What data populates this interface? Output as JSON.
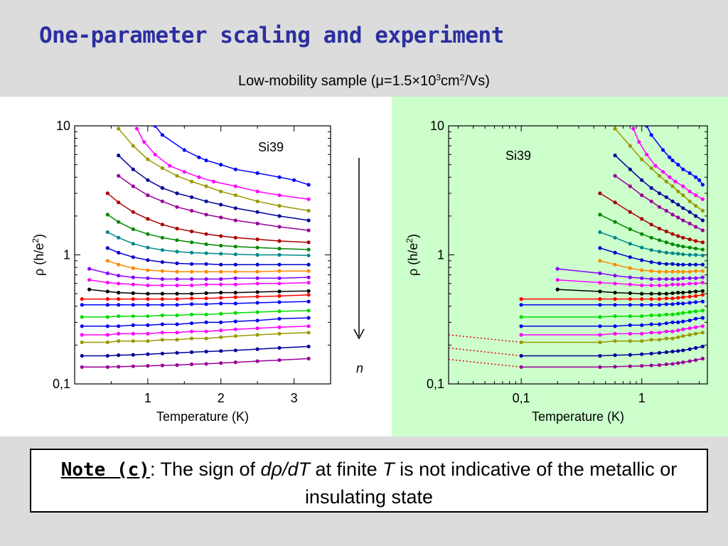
{
  "slide": {
    "title": "One-parameter scaling and experiment",
    "subtitle": {
      "prefix": "Low-mobility sample (μ=1.5",
      "times": "×",
      "ten": "10",
      "exp3": "3",
      "cm": "cm",
      "exp2": "2",
      "suffix": "/Vs)"
    }
  },
  "note": {
    "label": "Note (c)",
    "colon": ": The sign of ",
    "deriv": "dρ/dT",
    "mid": " at finite ",
    "T": "T",
    "rest": " is not indicative of the metallic or insulating state"
  },
  "arrow_label": "n",
  "colors": {
    "title": "#2b2fa0",
    "right_panel_bg": "#ccffcc",
    "extrapolation": "#e00000"
  },
  "chart_data": [
    {
      "type": "line",
      "title": "",
      "annotation": "Si39",
      "xlabel": "Temperature (K)",
      "ylabel_symbol": "ρ",
      "ylabel_unit": "(h/e",
      "ylabel_exp": "2",
      "ylabel_close": ")",
      "x_scale": "linear",
      "y_scale": "log",
      "xlim": [
        0,
        3.5
      ],
      "ylim": [
        0.1,
        10
      ],
      "x_ticks": [
        1,
        2,
        3
      ],
      "x_tick_labels": [
        "1",
        "2",
        "3"
      ],
      "y_ticks": [
        0.1,
        1,
        10
      ],
      "y_tick_labels": [
        "0,1",
        "1",
        "10"
      ],
      "grid": false,
      "x": [
        0.6,
        0.8,
        1.0,
        1.2,
        1.4,
        1.6,
        1.8,
        2.0,
        2.2,
        2.4,
        2.6,
        2.8,
        3.0,
        3.2
      ],
      "series": [
        {
          "color": "#0000ff",
          "x": [
            1.1,
            1.2,
            1.5,
            1.7,
            1.8,
            2.0,
            2.2,
            2.5,
            2.8,
            3.0,
            3.2
          ],
          "values": [
            10.0,
            8.5,
            6.5,
            5.7,
            5.4,
            5.0,
            4.6,
            4.3,
            4.0,
            3.8,
            3.5
          ]
        },
        {
          "color": "#ff00ff",
          "x": [
            0.85,
            0.95,
            1.1,
            1.3,
            1.5,
            1.7,
            1.9,
            2.2,
            2.5,
            2.8,
            3.2
          ],
          "values": [
            9.5,
            7.5,
            6.0,
            4.9,
            4.4,
            4.0,
            3.7,
            3.4,
            3.1,
            2.9,
            2.7
          ]
        },
        {
          "color": "#999900",
          "x": [
            0.6,
            0.8,
            1.0,
            1.2,
            1.4,
            1.6,
            1.8,
            2.0,
            2.2,
            2.5,
            2.8,
            3.2
          ],
          "values": [
            9.5,
            7.0,
            5.5,
            4.7,
            4.1,
            3.7,
            3.4,
            3.1,
            2.9,
            2.6,
            2.4,
            2.2
          ]
        },
        {
          "color": "#000099",
          "x": [
            0.6,
            0.8,
            1.0,
            1.2,
            1.4,
            1.6,
            1.8,
            2.0,
            2.2,
            2.5,
            2.8,
            3.2
          ],
          "values": [
            5.9,
            4.6,
            3.8,
            3.3,
            3.0,
            2.8,
            2.6,
            2.45,
            2.3,
            2.15,
            2.0,
            1.85
          ]
        },
        {
          "color": "#990099",
          "x": [
            0.6,
            0.8,
            1.0,
            1.2,
            1.4,
            1.6,
            1.8,
            2.0,
            2.2,
            2.5,
            2.8,
            3.2
          ],
          "values": [
            4.1,
            3.4,
            2.9,
            2.6,
            2.35,
            2.2,
            2.05,
            1.95,
            1.85,
            1.75,
            1.65,
            1.55
          ]
        },
        {
          "color": "#aa0000",
          "x": [
            0.45,
            0.6,
            0.8,
            1.0,
            1.2,
            1.4,
            1.6,
            1.8,
            2.0,
            2.2,
            2.5,
            2.8,
            3.2
          ],
          "values": [
            3.0,
            2.55,
            2.15,
            1.9,
            1.72,
            1.6,
            1.52,
            1.45,
            1.4,
            1.36,
            1.32,
            1.28,
            1.25
          ]
        },
        {
          "color": "#008800",
          "x": [
            0.45,
            0.6,
            0.8,
            1.0,
            1.2,
            1.4,
            1.6,
            1.8,
            2.0,
            2.2,
            2.5,
            2.8,
            3.2
          ],
          "values": [
            2.05,
            1.8,
            1.58,
            1.45,
            1.36,
            1.3,
            1.25,
            1.21,
            1.18,
            1.16,
            1.14,
            1.12,
            1.1
          ]
        },
        {
          "color": "#008888",
          "x": [
            0.45,
            0.6,
            0.8,
            1.0,
            1.2,
            1.4,
            1.6,
            1.8,
            2.0,
            2.2,
            2.5,
            2.8,
            3.2
          ],
          "values": [
            1.5,
            1.36,
            1.22,
            1.14,
            1.09,
            1.06,
            1.04,
            1.03,
            1.02,
            1.01,
            1.0,
            1.0,
            0.99
          ]
        },
        {
          "color": "#0000cc",
          "x": [
            0.45,
            0.6,
            0.8,
            1.0,
            1.2,
            1.4,
            1.6,
            1.8,
            2.0,
            2.2,
            2.5,
            2.8,
            3.2
          ],
          "values": [
            1.13,
            1.04,
            0.96,
            0.91,
            0.88,
            0.86,
            0.85,
            0.85,
            0.84,
            0.84,
            0.84,
            0.84,
            0.84
          ]
        },
        {
          "color": "#ff8800",
          "x": [
            0.45,
            0.6,
            0.8,
            1.0,
            1.2,
            1.4,
            1.6,
            1.8,
            2.0,
            2.2,
            2.5,
            2.8,
            3.2
          ],
          "values": [
            0.9,
            0.84,
            0.79,
            0.76,
            0.75,
            0.74,
            0.74,
            0.74,
            0.74,
            0.74,
            0.74,
            0.75,
            0.75
          ]
        },
        {
          "color": "#8800ff",
          "x": [
            0.2,
            0.45,
            0.6,
            0.8,
            1.0,
            1.2,
            1.4,
            1.6,
            1.8,
            2.0,
            2.2,
            2.5,
            2.8,
            3.2
          ],
          "values": [
            0.78,
            0.72,
            0.69,
            0.67,
            0.66,
            0.65,
            0.65,
            0.65,
            0.65,
            0.65,
            0.66,
            0.66,
            0.66,
            0.67
          ]
        },
        {
          "color": "#ff00ff",
          "x": [
            0.2,
            0.45,
            0.6,
            0.8,
            1.0,
            1.2,
            1.4,
            1.6,
            1.8,
            2.0,
            2.2,
            2.5,
            2.8,
            3.2
          ],
          "values": [
            0.64,
            0.61,
            0.6,
            0.59,
            0.58,
            0.58,
            0.58,
            0.58,
            0.59,
            0.59,
            0.59,
            0.6,
            0.6,
            0.61
          ]
        },
        {
          "color": "#000000",
          "x": [
            0.2,
            0.45,
            0.6,
            0.8,
            1.0,
            1.2,
            1.4,
            1.6,
            1.8,
            2.0,
            2.2,
            2.5,
            2.8,
            3.2
          ],
          "values": [
            0.54,
            0.52,
            0.51,
            0.505,
            0.5,
            0.5,
            0.5,
            0.5,
            0.505,
            0.51,
            0.51,
            0.515,
            0.52,
            0.525
          ]
        },
        {
          "color": "#ff0000",
          "x": [
            0.1,
            0.45,
            0.6,
            0.8,
            1.0,
            1.2,
            1.4,
            1.6,
            1.8,
            2.0,
            2.2,
            2.5,
            2.8,
            3.2
          ],
          "values": [
            0.455,
            0.455,
            0.455,
            0.455,
            0.455,
            0.455,
            0.455,
            0.46,
            0.46,
            0.465,
            0.47,
            0.475,
            0.48,
            0.49
          ]
        },
        {
          "color": "#0000ff",
          "x": [
            0.1,
            0.45,
            0.6,
            0.8,
            1.0,
            1.2,
            1.4,
            1.6,
            1.8,
            2.0,
            2.2,
            2.5,
            2.8,
            3.2
          ],
          "values": [
            0.41,
            0.41,
            0.41,
            0.41,
            0.41,
            0.41,
            0.41,
            0.415,
            0.415,
            0.42,
            0.42,
            0.425,
            0.43,
            0.435
          ]
        },
        {
          "color": "#00dd00",
          "x": [
            0.1,
            0.45,
            0.6,
            0.8,
            1.0,
            1.2,
            1.4,
            1.6,
            1.8,
            2.0,
            2.2,
            2.5,
            2.8,
            3.2
          ],
          "values": [
            0.33,
            0.33,
            0.335,
            0.335,
            0.335,
            0.34,
            0.34,
            0.345,
            0.345,
            0.35,
            0.355,
            0.36,
            0.365,
            0.37
          ]
        },
        {
          "color": "#0000ee",
          "x": [
            0.1,
            0.45,
            0.6,
            0.8,
            1.0,
            1.2,
            1.4,
            1.6,
            1.8,
            2.0,
            2.2,
            2.5,
            2.8,
            3.2
          ],
          "values": [
            0.28,
            0.28,
            0.28,
            0.285,
            0.285,
            0.29,
            0.29,
            0.295,
            0.3,
            0.3,
            0.305,
            0.31,
            0.32,
            0.325
          ]
        },
        {
          "color": "#ff00ff",
          "x": [
            0.1,
            0.45,
            0.6,
            0.8,
            1.0,
            1.2,
            1.4,
            1.6,
            1.8,
            2.0,
            2.2,
            2.5,
            2.8,
            3.2
          ],
          "values": [
            0.24,
            0.24,
            0.245,
            0.245,
            0.245,
            0.25,
            0.25,
            0.255,
            0.255,
            0.26,
            0.265,
            0.27,
            0.275,
            0.28
          ]
        },
        {
          "color": "#999900",
          "x": [
            0.1,
            0.45,
            0.6,
            0.8,
            1.0,
            1.2,
            1.4,
            1.6,
            1.8,
            2.0,
            2.2,
            2.5,
            2.8,
            3.2
          ],
          "values": [
            0.21,
            0.21,
            0.215,
            0.215,
            0.215,
            0.22,
            0.22,
            0.225,
            0.225,
            0.23,
            0.235,
            0.24,
            0.245,
            0.25
          ]
        },
        {
          "color": "#000099",
          "x": [
            0.1,
            0.45,
            0.6,
            0.8,
            1.0,
            1.2,
            1.4,
            1.6,
            1.8,
            2.0,
            2.2,
            2.5,
            2.8,
            3.2
          ],
          "values": [
            0.165,
            0.165,
            0.167,
            0.168,
            0.17,
            0.172,
            0.174,
            0.176,
            0.178,
            0.18,
            0.182,
            0.186,
            0.19,
            0.195
          ]
        },
        {
          "color": "#990099",
          "x": [
            0.1,
            0.45,
            0.6,
            0.8,
            1.0,
            1.2,
            1.4,
            1.6,
            1.8,
            2.0,
            2.2,
            2.5,
            2.8,
            3.2
          ],
          "values": [
            0.135,
            0.135,
            0.136,
            0.137,
            0.138,
            0.139,
            0.14,
            0.142,
            0.143,
            0.145,
            0.147,
            0.15,
            0.153,
            0.157
          ]
        }
      ]
    },
    {
      "type": "line",
      "title": "",
      "annotation": "Si39",
      "xlabel": "Temperature (K)",
      "ylabel_symbol": "ρ",
      "ylabel_unit": "(h/e",
      "ylabel_exp": "2",
      "ylabel_close": ")",
      "x_scale": "log",
      "y_scale": "log",
      "xlim": [
        0.025,
        3.5
      ],
      "ylim": [
        0.1,
        10
      ],
      "x_ticks": [
        0.1,
        1
      ],
      "x_tick_labels": [
        "0,1",
        "1"
      ],
      "y_ticks": [
        0.1,
        1,
        10
      ],
      "y_tick_labels": [
        "0,1",
        "1",
        "10"
      ],
      "grid": false,
      "same_series_as_left": true,
      "extrapolations": [
        {
          "x": [
            0.025,
            0.1
          ],
          "values": [
            0.24,
            0.21
          ]
        },
        {
          "x": [
            0.025,
            0.1
          ],
          "values": [
            0.19,
            0.165
          ]
        },
        {
          "x": [
            0.025,
            0.1
          ],
          "values": [
            0.155,
            0.135
          ]
        }
      ]
    }
  ]
}
